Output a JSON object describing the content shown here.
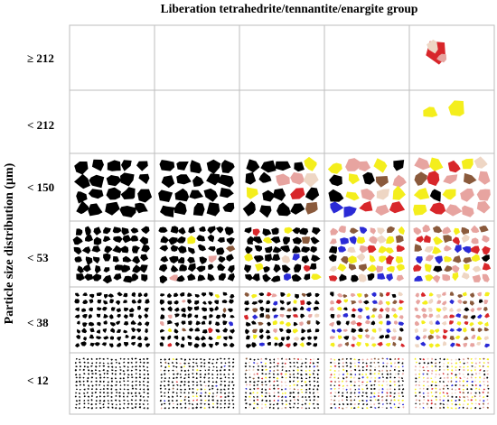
{
  "title": "Liberation tetrahedrite/tennantite/enargite group",
  "y_axis_label": "Particle size distribution (μm)",
  "rows": [
    {
      "label": "≥ 212",
      "fill": [
        0,
        0,
        0,
        0,
        0
      ],
      "colored": [
        0,
        0,
        0,
        0,
        1
      ],
      "density": 0,
      "size": 0
    },
    {
      "label": "< 212",
      "fill": [
        0,
        0,
        0,
        0,
        0
      ],
      "colored": [
        0,
        0,
        0,
        0,
        1
      ],
      "density": 0,
      "size": 0
    },
    {
      "label": "< 150",
      "fill": [
        1,
        1,
        1,
        1,
        1
      ],
      "colored": [
        0,
        0.15,
        0.45,
        0.8,
        0.95
      ],
      "density": 18,
      "size": 9
    },
    {
      "label": "< 53",
      "fill": [
        1,
        1,
        1,
        1,
        1
      ],
      "colored": [
        0,
        0.1,
        0.4,
        0.8,
        0.95
      ],
      "density": 48,
      "size": 5.5
    },
    {
      "label": "< 38",
      "fill": [
        1,
        1,
        1,
        1,
        1
      ],
      "colored": [
        0,
        0.1,
        0.4,
        0.75,
        0.9
      ],
      "density": 90,
      "size": 3.2
    },
    {
      "label": "< 12",
      "fill": [
        1,
        1,
        1,
        1,
        1
      ],
      "colored": [
        0,
        0.1,
        0.35,
        0.6,
        0.8
      ],
      "density": 260,
      "size": 1.3
    }
  ],
  "colors": {
    "gangue": "#000000",
    "mineral_yellow": "#f4ee1c",
    "mineral_red": "#d8262a",
    "mineral_pink": "#e7a4a0",
    "mineral_brown": "#8a5a3c",
    "mineral_beige": "#eed6c4",
    "mineral_blue": "#2a2ad6",
    "grid_line": "#bdbdbd"
  }
}
